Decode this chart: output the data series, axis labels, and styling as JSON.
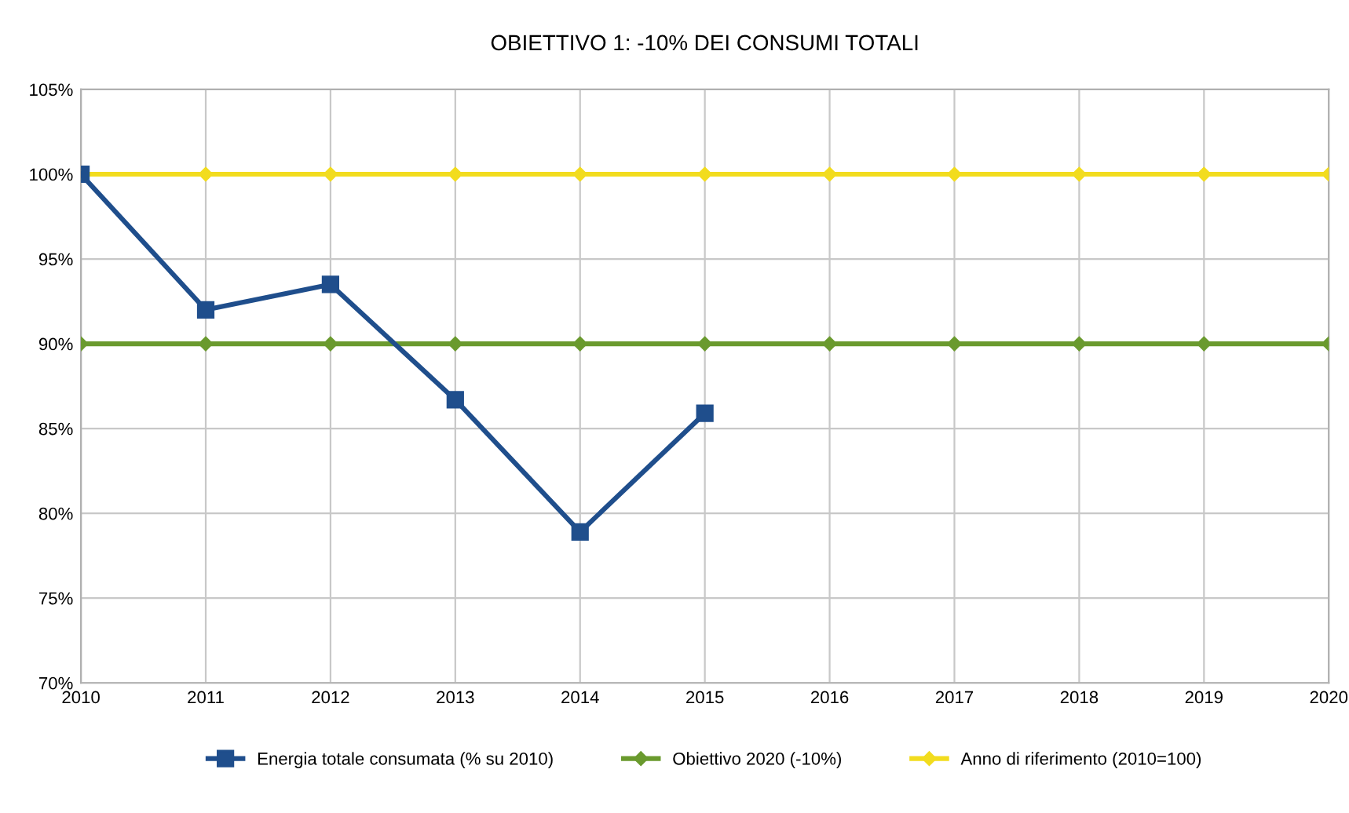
{
  "chart_data": {
    "type": "line",
    "title": "OBIETTIVO 1: -10% DEI CONSUMI TOTALI",
    "x": [
      2010,
      2011,
      2012,
      2013,
      2014,
      2015,
      2016,
      2017,
      2018,
      2019,
      2020
    ],
    "series": [
      {
        "name": "Energia totale consumata (% su 2010)",
        "color": "#1f4e8c",
        "marker": "square",
        "values": [
          100,
          92.0,
          93.5,
          86.7,
          78.9,
          85.9,
          null,
          null,
          null,
          null,
          null
        ]
      },
      {
        "name": "Obiettivo 2020 (-10%)",
        "color": "#6a9a2e",
        "marker": "diamond",
        "values": [
          90,
          90,
          90,
          90,
          90,
          90,
          90,
          90,
          90,
          90,
          90
        ]
      },
      {
        "name": "Anno di riferimento (2010=100)",
        "color": "#f2dc1e",
        "marker": "diamond",
        "values": [
          100,
          100,
          100,
          100,
          100,
          100,
          100,
          100,
          100,
          100,
          100
        ]
      }
    ],
    "xlim": [
      2010,
      2020
    ],
    "xticks": [
      2010,
      2011,
      2012,
      2013,
      2014,
      2015,
      2016,
      2017,
      2018,
      2019,
      2020
    ],
    "ylim": [
      70,
      105
    ],
    "yticks": [
      {
        "value": 70,
        "label": "70%"
      },
      {
        "value": 75,
        "label": "75%"
      },
      {
        "value": 80,
        "label": "80%"
      },
      {
        "value": 85,
        "label": "85%"
      },
      {
        "value": 90,
        "label": "90%"
      },
      {
        "value": 95,
        "label": "95%"
      },
      {
        "value": 100,
        "label": "100%"
      },
      {
        "value": 105,
        "label": "105%"
      }
    ],
    "grid": true,
    "legend": "bottom",
    "line_style": "solid"
  }
}
